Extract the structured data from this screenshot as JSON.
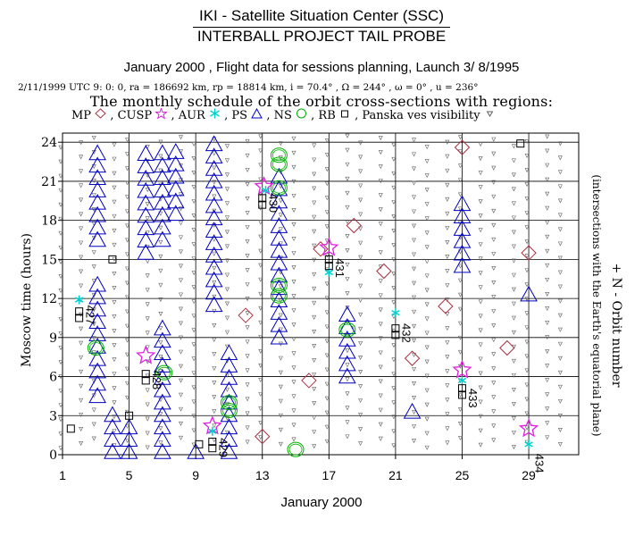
{
  "header": {
    "line1": "IKI - Satellite Situation Center (SSC)",
    "line2": "INTERBALL PROJECT TAIL PROBE",
    "line3": "January 2000 ,  Flight data for sessions planning,   Launch  3/ 8/1995",
    "params": "2/11/1999 UTC  9: 0: 0, ra = 186692 km, rp =  18814 km, i = 70.4° , Ω = 244° , ω =    0° , u = 236°",
    "line4": "The monthly schedule of the orbit cross-sections with regions:"
  },
  "legend": {
    "mp": "MP",
    "cusp": ", CUSP",
    "aur": ", AUR",
    "ps": ", PS",
    "ns": ", NS",
    "rb": ", RB",
    "panska": ", Panska ves visibility"
  },
  "colors": {
    "mp": "#a83040",
    "cusp": "#e020e0",
    "aur": "#00d0d0",
    "ps": "#0000c0",
    "ns": "#00b000",
    "rb": "#000000",
    "panska": "#606060",
    "grid": "#000000"
  },
  "chart_data": {
    "type": "scatter",
    "xlabel": "January 2000",
    "ylabel": "Moscow time (hours)",
    "right_label_1": "+ N - Orbit number",
    "right_label_2": "(intersections with the Earth's equatorial plane)",
    "xlim": [
      1,
      32
    ],
    "ylim": [
      0,
      24.7
    ],
    "x_ticks": [
      1,
      5,
      9,
      13,
      17,
      21,
      25,
      29
    ],
    "x_tick_labels": [
      "1",
      "5",
      "9",
      "13",
      "17",
      "21",
      "25",
      "29"
    ],
    "y_ticks": [
      0,
      3,
      6,
      9,
      12,
      15,
      18,
      21,
      24
    ],
    "y_tick_labels": [
      "0",
      "3",
      "6",
      "9",
      "12",
      "15",
      "18",
      "21",
      "24"
    ],
    "grid": true,
    "series": [
      {
        "name": "PS",
        "marker": "triangle",
        "columns": [
          {
            "day": 3.1,
            "start": 4.5,
            "end": 13.6
          },
          {
            "day": 3.1,
            "start": 16.5,
            "end": 24.0
          },
          {
            "day": 4.0,
            "start": 0.2,
            "end": 3.7
          },
          {
            "day": 5.0,
            "start": 0.2,
            "end": 2.7
          },
          {
            "day": 6.0,
            "start": 15.5,
            "end": 24.0
          },
          {
            "day": 7.0,
            "start": 0.2,
            "end": 10.3
          },
          {
            "day": 7.0,
            "start": 16.5,
            "end": 24.0
          },
          {
            "day": 7.8,
            "start": 18.5,
            "end": 24.0
          },
          {
            "day": 9.0,
            "start": 0.2,
            "end": 1.0
          },
          {
            "day": 10.1,
            "start": 11.5,
            "end": 24.0
          },
          {
            "day": 11.0,
            "start": 0.2,
            "end": 7.8
          },
          {
            "day": 14.0,
            "start": 9.0,
            "end": 22.0
          },
          {
            "day": 18.1,
            "start": 6.0,
            "end": 11.5
          },
          {
            "day": 22.0,
            "start": 3.3,
            "end": 3.6
          },
          {
            "day": 25.0,
            "start": 14.5,
            "end": 20.0
          },
          {
            "day": 29.0,
            "start": 12.3,
            "end": 12.6
          }
        ]
      },
      {
        "name": "NS",
        "marker": "circle",
        "points": [
          {
            "day": 3.0,
            "hour": 8.2
          },
          {
            "day": 7.1,
            "hour": 6.3
          },
          {
            "day": 11.0,
            "hour": 3.4
          },
          {
            "day": 11.0,
            "hour": 4.0
          },
          {
            "day": 14.0,
            "hour": 12.2
          },
          {
            "day": 14.0,
            "hour": 13.0
          },
          {
            "day": 14.0,
            "hour": 20.5
          },
          {
            "day": 14.0,
            "hour": 22.3
          },
          {
            "day": 14.0,
            "hour": 23.0
          },
          {
            "day": 15.0,
            "hour": 0.4
          },
          {
            "day": 18.1,
            "hour": 9.6
          }
        ]
      },
      {
        "name": "MP",
        "marker": "diamond",
        "points": [
          {
            "day": 12.0,
            "hour": 10.7
          },
          {
            "day": 13.0,
            "hour": 1.4
          },
          {
            "day": 15.8,
            "hour": 5.7
          },
          {
            "day": 16.5,
            "hour": 15.8
          },
          {
            "day": 18.5,
            "hour": 17.6
          },
          {
            "day": 20.3,
            "hour": 14.1
          },
          {
            "day": 22.0,
            "hour": 7.4
          },
          {
            "day": 24.0,
            "hour": 11.4
          },
          {
            "day": 25.0,
            "hour": 23.6
          },
          {
            "day": 27.7,
            "hour": 8.2
          },
          {
            "day": 29.0,
            "hour": 15.5
          }
        ]
      },
      {
        "name": "CUSP",
        "marker": "star",
        "points": [
          {
            "day": 6.0,
            "hour": 7.6
          },
          {
            "day": 10.0,
            "hour": 2.2
          },
          {
            "day": 13.1,
            "hour": 20.6
          },
          {
            "day": 17.0,
            "hour": 15.9
          },
          {
            "day": 25.0,
            "hour": 6.5
          },
          {
            "day": 29.0,
            "hour": 2.0
          }
        ]
      },
      {
        "name": "AUR",
        "marker": "asterisk",
        "points": [
          {
            "day": 2.0,
            "hour": 11.9
          },
          {
            "day": 10.0,
            "hour": 1.8
          },
          {
            "day": 13.2,
            "hour": 20.3
          },
          {
            "day": 17.0,
            "hour": 14.0
          },
          {
            "day": 21.0,
            "hour": 10.9
          },
          {
            "day": 25.0,
            "hour": 5.7
          },
          {
            "day": 29.0,
            "hour": 0.8
          }
        ]
      },
      {
        "name": "RB",
        "marker": "square",
        "points": [
          {
            "day": 1.5,
            "hour": 2.0
          },
          {
            "day": 2.0,
            "hour": 10.5
          },
          {
            "day": 2.0,
            "hour": 11.0
          },
          {
            "day": 4.0,
            "hour": 15.0
          },
          {
            "day": 5.0,
            "hour": 3.0
          },
          {
            "day": 6.0,
            "hour": 5.7
          },
          {
            "day": 6.0,
            "hour": 6.2
          },
          {
            "day": 9.2,
            "hour": 0.8
          },
          {
            "day": 10.0,
            "hour": 0.5
          },
          {
            "day": 10.0,
            "hour": 1.0
          },
          {
            "day": 13.0,
            "hour": 19.2
          },
          {
            "day": 13.0,
            "hour": 19.7
          },
          {
            "day": 17.0,
            "hour": 14.5
          },
          {
            "day": 17.0,
            "hour": 15.0
          },
          {
            "day": 21.0,
            "hour": 9.2
          },
          {
            "day": 21.0,
            "hour": 9.7
          },
          {
            "day": 25.0,
            "hour": 4.6
          },
          {
            "day": 25.0,
            "hour": 5.1
          },
          {
            "day": 28.5,
            "hour": 23.9
          }
        ]
      }
    ],
    "panska_visibility": {
      "name": "Panska ves visibility",
      "marker": "small-triangle",
      "day_columns": [
        1,
        2,
        3,
        4,
        5,
        6,
        7,
        8,
        9,
        10,
        11,
        12,
        13,
        14,
        15,
        16,
        17,
        18,
        19,
        20,
        21,
        22,
        23,
        24,
        25,
        26,
        27,
        28,
        29,
        30,
        31
      ]
    },
    "orbit_numbers": [
      {
        "label": "427",
        "day": 2.3,
        "hour": 10.8
      },
      {
        "label": "428",
        "day": 6.3,
        "hour": 5.8
      },
      {
        "label": "429",
        "day": 10.3,
        "hour": 0.6
      },
      {
        "label": "430",
        "day": 13.3,
        "hour": 19.4
      },
      {
        "label": "431",
        "day": 17.3,
        "hour": 14.4
      },
      {
        "label": "432",
        "day": 21.3,
        "hour": 9.4
      },
      {
        "label": "433",
        "day": 25.3,
        "hour": 4.4
      },
      {
        "label": "434",
        "day": 29.3,
        "hour": -0.6
      }
    ]
  }
}
